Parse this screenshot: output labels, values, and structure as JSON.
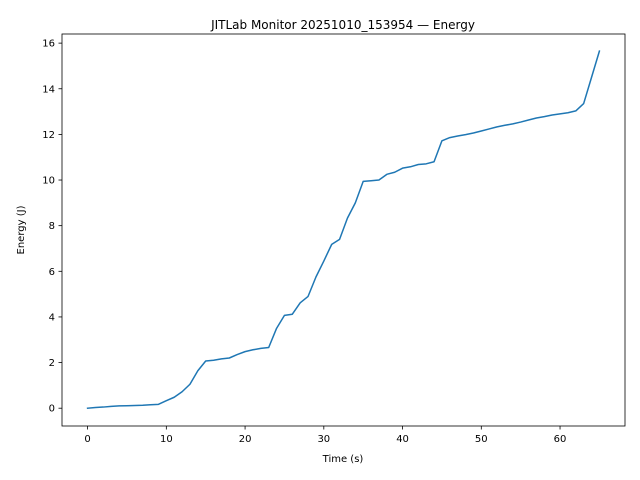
{
  "chart_data": {
    "type": "line",
    "title": "JITLab Monitor 20251010_153954 — Energy",
    "xlabel": "Time (s)",
    "ylabel": "Energy (J)",
    "xlim": [
      -3.25,
      68.25
    ],
    "ylim": [
      -0.78,
      16.4
    ],
    "xticks": [
      0,
      10,
      20,
      30,
      40,
      50,
      60
    ],
    "yticks": [
      0,
      2,
      4,
      6,
      8,
      10,
      12,
      14,
      16
    ],
    "grid": false,
    "line_color": "#1f77b4",
    "series": [
      {
        "x": [
          0,
          1,
          2,
          3,
          4,
          5,
          6,
          7,
          8,
          9,
          10,
          11,
          12,
          13,
          14,
          15,
          16,
          17,
          18,
          19,
          20,
          21,
          22,
          23,
          24,
          25,
          26,
          27,
          28,
          29,
          30,
          31,
          32,
          33,
          34,
          35,
          36,
          37,
          38,
          39,
          40,
          41,
          42,
          43,
          44,
          45,
          46,
          47,
          48,
          49,
          50,
          51,
          52,
          53,
          54,
          55,
          56,
          57,
          58,
          59,
          60,
          61,
          62,
          63,
          64,
          65
        ],
        "y": [
          0.0,
          0.03,
          0.05,
          0.08,
          0.1,
          0.11,
          0.12,
          0.13,
          0.15,
          0.17,
          0.33,
          0.48,
          0.72,
          1.05,
          1.64,
          2.07,
          2.1,
          2.16,
          2.2,
          2.35,
          2.48,
          2.56,
          2.62,
          2.66,
          3.5,
          4.07,
          4.12,
          4.62,
          4.9,
          5.75,
          6.45,
          7.18,
          7.4,
          8.33,
          9.0,
          9.94,
          9.97,
          10.0,
          10.25,
          10.34,
          10.52,
          10.58,
          10.68,
          10.71,
          10.8,
          11.72,
          11.86,
          11.93,
          11.99,
          12.06,
          12.15,
          12.24,
          12.33,
          12.4,
          12.46,
          12.54,
          12.63,
          12.72,
          12.78,
          12.85,
          12.9,
          12.95,
          13.03,
          13.35,
          14.5,
          15.65
        ]
      }
    ]
  }
}
